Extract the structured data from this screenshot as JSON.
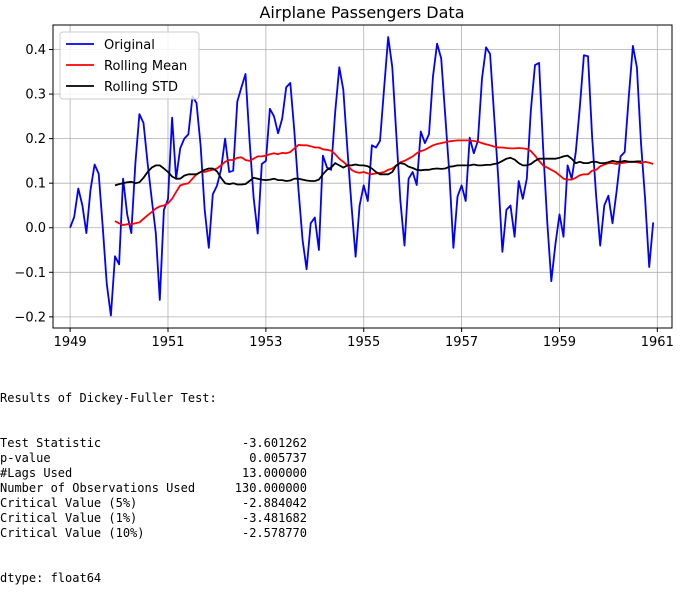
{
  "chart_data": {
    "type": "line",
    "title": "Airplane Passengers Data",
    "xlabel": "",
    "ylabel": "",
    "xlim": [
      1948.65,
      1961.3
    ],
    "ylim": [
      -0.225,
      0.455
    ],
    "xticks": [
      1949,
      1951,
      1953,
      1955,
      1957,
      1959,
      1961
    ],
    "yticks": [
      -0.2,
      -0.1,
      0.0,
      0.1,
      0.2,
      0.3,
      0.4
    ],
    "ytick_labels": [
      "−0.2",
      "−0.1",
      "0.0",
      "0.1",
      "0.2",
      "0.3",
      "0.4"
    ],
    "grid": true,
    "legend": "top-left",
    "series": [
      {
        "name": "Original",
        "color": "#0000ff",
        "x_start": 1949.0,
        "x_step": 0.0833333,
        "values": [
          0.0,
          0.024,
          0.088,
          0.05,
          -0.012,
          0.085,
          0.142,
          0.121,
          0.003,
          -0.127,
          -0.197,
          -0.064,
          -0.082,
          0.11,
          0.03,
          -0.012,
          0.145,
          0.255,
          0.235,
          0.145,
          0.065,
          -0.012,
          -0.162,
          0.04,
          0.064,
          0.247,
          0.11,
          0.178,
          0.2,
          0.21,
          0.295,
          0.28,
          0.185,
          0.04,
          -0.045,
          0.075,
          0.094,
          0.13,
          0.2,
          0.125,
          0.128,
          0.283,
          0.315,
          0.345,
          0.198,
          0.068,
          -0.013,
          0.143,
          0.15,
          0.267,
          0.25,
          0.212,
          0.245,
          0.315,
          0.325,
          0.215,
          0.085,
          -0.028,
          -0.093,
          0.01,
          0.023,
          -0.05,
          0.162,
          0.135,
          0.13,
          0.26,
          0.36,
          0.31,
          0.176,
          0.05,
          -0.065,
          0.05,
          0.095,
          0.06,
          0.185,
          0.18,
          0.195,
          0.313,
          0.428,
          0.36,
          0.21,
          0.06,
          -0.04,
          0.11,
          0.125,
          0.096,
          0.216,
          0.19,
          0.21,
          0.34,
          0.413,
          0.38,
          0.25,
          0.12,
          -0.045,
          0.07,
          0.095,
          0.06,
          0.202,
          0.167,
          0.195,
          0.335,
          0.405,
          0.39,
          0.25,
          0.11,
          -0.054,
          0.04,
          0.05,
          -0.02,
          0.105,
          0.065,
          0.11,
          0.265,
          0.365,
          0.37,
          0.18,
          0.015,
          -0.12,
          -0.037,
          0.03,
          -0.02,
          0.14,
          0.11,
          0.17,
          0.27,
          0.387,
          0.385,
          0.205,
          0.07,
          -0.04,
          0.05,
          0.072,
          0.01,
          0.08,
          0.16,
          0.17,
          0.295,
          0.408,
          0.36,
          0.19,
          0.065,
          -0.088,
          0.012
        ]
      },
      {
        "name": "Rolling Mean",
        "color": "#ff0000",
        "x_start": 1949.9167,
        "x_step": 0.0833333,
        "values": [
          0.015,
          0.01,
          0.006,
          0.008,
          0.008,
          0.01,
          0.012,
          0.02,
          0.028,
          0.035,
          0.043,
          0.048,
          0.05,
          0.055,
          0.065,
          0.08,
          0.095,
          0.098,
          0.1,
          0.11,
          0.12,
          0.125,
          0.125,
          0.128,
          0.13,
          0.133,
          0.14,
          0.148,
          0.152,
          0.152,
          0.157,
          0.158,
          0.152,
          0.15,
          0.155,
          0.16,
          0.16,
          0.162,
          0.165,
          0.167,
          0.165,
          0.168,
          0.167,
          0.17,
          0.178,
          0.186,
          0.185,
          0.185,
          0.183,
          0.18,
          0.18,
          0.176,
          0.175,
          0.173,
          0.165,
          0.155,
          0.148,
          0.14,
          0.13,
          0.125,
          0.123,
          0.125,
          0.122,
          0.12,
          0.122,
          0.123,
          0.125,
          0.13,
          0.133,
          0.14,
          0.147,
          0.15,
          0.155,
          0.16,
          0.167,
          0.172,
          0.175,
          0.18,
          0.185,
          0.188,
          0.19,
          0.192,
          0.194,
          0.195,
          0.196,
          0.196,
          0.196,
          0.196,
          0.195,
          0.193,
          0.19,
          0.187,
          0.185,
          0.182,
          0.18,
          0.18,
          0.179,
          0.178,
          0.178,
          0.179,
          0.178,
          0.177,
          0.172,
          0.162,
          0.15,
          0.14,
          0.135,
          0.13,
          0.125,
          0.118,
          0.11,
          0.108,
          0.108,
          0.112,
          0.118,
          0.12,
          0.12,
          0.128,
          0.13,
          0.138,
          0.142,
          0.145,
          0.145,
          0.143,
          0.145,
          0.146,
          0.148,
          0.148,
          0.147,
          0.145,
          0.148,
          0.146,
          0.143
        ]
      },
      {
        "name": "Rolling STD",
        "color": "#000000",
        "x_start": 1949.9167,
        "x_step": 0.0833333,
        "values": [
          0.095,
          0.098,
          0.1,
          0.102,
          0.103,
          0.1,
          0.102,
          0.112,
          0.125,
          0.135,
          0.14,
          0.14,
          0.133,
          0.125,
          0.115,
          0.11,
          0.11,
          0.117,
          0.12,
          0.12,
          0.12,
          0.125,
          0.13,
          0.133,
          0.133,
          0.127,
          0.112,
          0.1,
          0.098,
          0.1,
          0.097,
          0.097,
          0.098,
          0.105,
          0.112,
          0.11,
          0.108,
          0.107,
          0.108,
          0.11,
          0.107,
          0.107,
          0.105,
          0.106,
          0.11,
          0.11,
          0.108,
          0.106,
          0.105,
          0.105,
          0.108,
          0.12,
          0.13,
          0.135,
          0.145,
          0.14,
          0.135,
          0.14,
          0.14,
          0.142,
          0.14,
          0.14,
          0.138,
          0.133,
          0.125,
          0.12,
          0.12,
          0.12,
          0.125,
          0.14,
          0.145,
          0.143,
          0.137,
          0.134,
          0.13,
          0.129,
          0.13,
          0.13,
          0.132,
          0.133,
          0.132,
          0.133,
          0.137,
          0.138,
          0.14,
          0.14,
          0.14,
          0.14,
          0.142,
          0.14,
          0.14,
          0.141,
          0.141,
          0.143,
          0.145,
          0.15,
          0.155,
          0.157,
          0.153,
          0.145,
          0.14,
          0.14,
          0.143,
          0.15,
          0.155,
          0.155,
          0.155,
          0.155,
          0.155,
          0.157,
          0.16,
          0.162,
          0.155,
          0.145,
          0.148,
          0.145,
          0.145,
          0.148,
          0.148,
          0.145,
          0.145,
          0.147,
          0.15,
          0.148,
          0.148,
          0.15,
          0.148,
          0.148,
          0.149,
          0.149
        ]
      }
    ]
  },
  "results": {
    "header": "Results of Dickey-Fuller Test:",
    "rows": [
      {
        "label": "Test Statistic",
        "value": "-3.601262"
      },
      {
        "label": "p-value",
        "value": "0.005737"
      },
      {
        "label": "#Lags Used",
        "value": "13.000000"
      },
      {
        "label": "Number of Observations Used",
        "value": "130.000000"
      },
      {
        "label": "Critical Value (5%)",
        "value": "-2.884042"
      },
      {
        "label": "Critical Value (1%)",
        "value": "-3.481682"
      },
      {
        "label": "Critical Value (10%)",
        "value": "-2.578770"
      }
    ],
    "dtype": "dtype: float64"
  }
}
